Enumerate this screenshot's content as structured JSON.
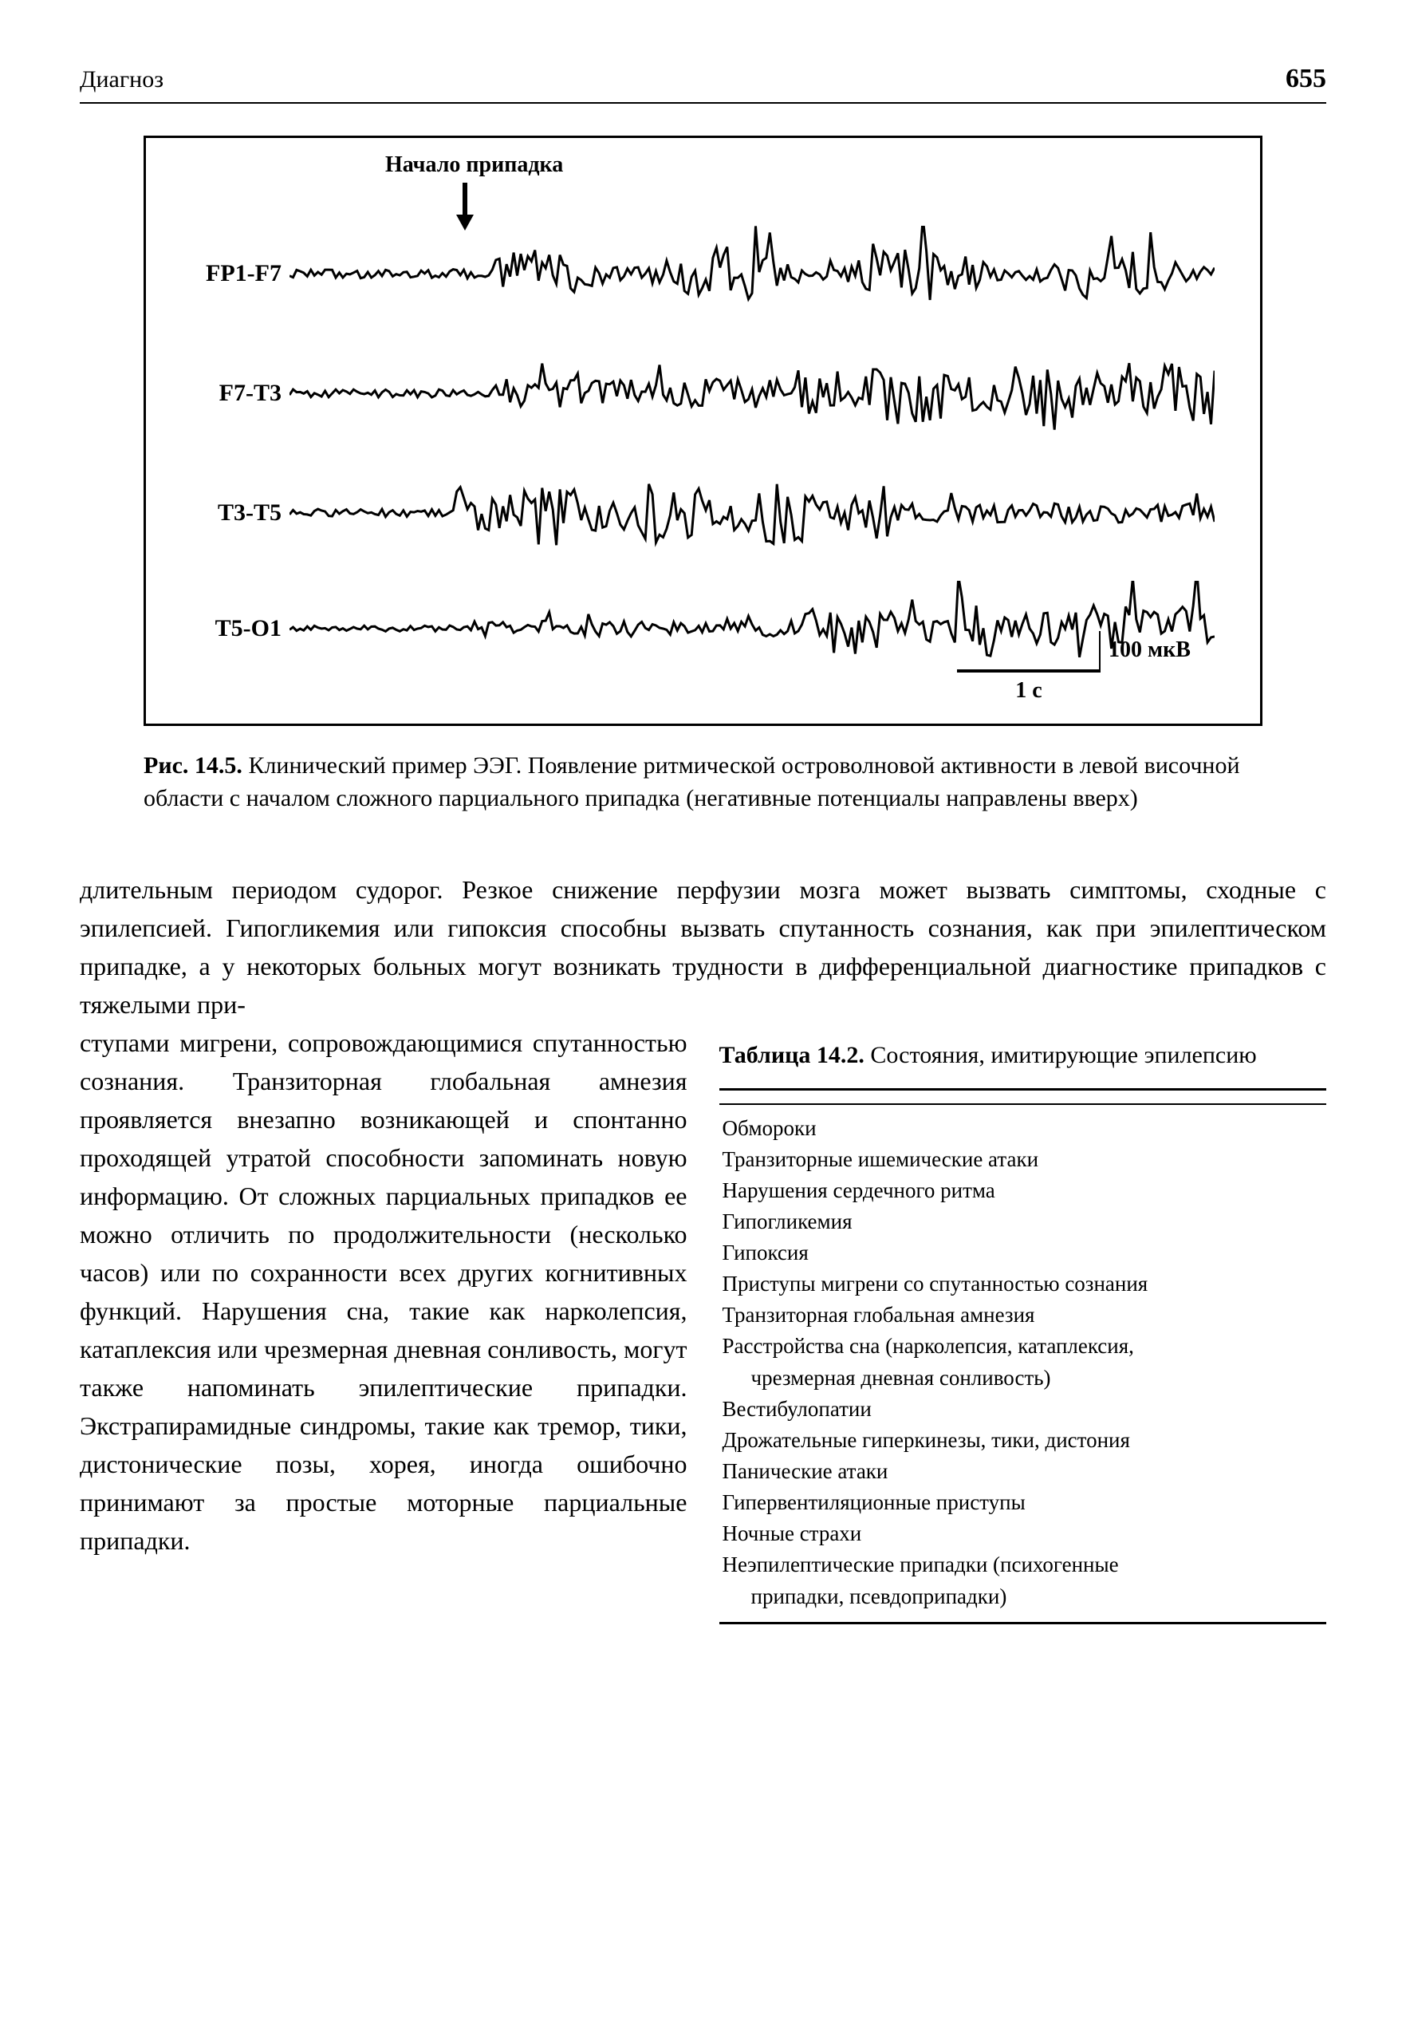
{
  "header": {
    "section": "Диагноз",
    "page_number": "655"
  },
  "figure": {
    "onset_label": "Начало припадка",
    "channels": [
      "FP1-F7",
      "F7-T3",
      "T3-T5",
      "T5-O1"
    ],
    "scale_time": "1 с",
    "scale_amplitude": "100 мкВ",
    "trace_color": "#000000",
    "border_color": "#000000",
    "background": "#ffffff"
  },
  "figure_caption": {
    "label": "Рис. 14.5.",
    "text": "Клинический пример ЭЭГ. Появление ритмической островолновой активности в левой височной области с началом сложного парциального припадка (негативные потенциалы направлены вверх)"
  },
  "body_para_top": "длительным периодом судорог. Резкое снижение перфузии мозга может вызвать симптомы, сходные с эпилепсией. Гипогликемия или гипоксия способны вызвать спутанность сознания, как при эпилептическом припадке, а у некоторых больных могут возникать трудности в дифференциальной диагностике припадков с тяжелыми при-",
  "body_para_left": "ступами мигрени, сопровождающимися спутанностью сознания. Транзиторная глобальная амнезия проявляется внезапно возникающей и спонтанно проходящей утратой способности запоминать новую информацию. От сложных парциальных припадков ее можно отличить по продолжительности (несколько часов) или по сохранности всех других когнитивных функций. Нарушения сна, такие как нарколепсия, катаплексия или чрезмерная дневная сонливость, могут также напоминать эпилептические припадки. Экстрапирамидные синдромы, такие как тремор, тики, дистонические позы, хорея, иногда ошибочно принимают за простые моторные парциальные припадки.",
  "table": {
    "label": "Таблица 14.2.",
    "title": "Состояния, имитирующие эпилепсию",
    "items": [
      {
        "text": "Обмороки"
      },
      {
        "text": "Транзиторные ишемические атаки"
      },
      {
        "text": "Нарушения сердечного ритма"
      },
      {
        "text": "Гипогликемия"
      },
      {
        "text": "Гипоксия"
      },
      {
        "text": "Приступы мигрени со спутанностью сознания"
      },
      {
        "text": "Транзиторная глобальная амнезия"
      },
      {
        "text": "Расстройства сна (нарколепсия, катаплексия,"
      },
      {
        "text": "чрезмерная дневная сонливость)",
        "indent": true
      },
      {
        "text": "Вестибулопатии"
      },
      {
        "text": "Дрожательные гиперкинезы, тики, дистония"
      },
      {
        "text": "Панические атаки"
      },
      {
        "text": "Гипервентиляционные приступы"
      },
      {
        "text": "Ночные страхи"
      },
      {
        "text": "Неэпилептические припадки (психогенные"
      },
      {
        "text": "припадки, псевдоприпадки)",
        "indent": true
      }
    ]
  }
}
